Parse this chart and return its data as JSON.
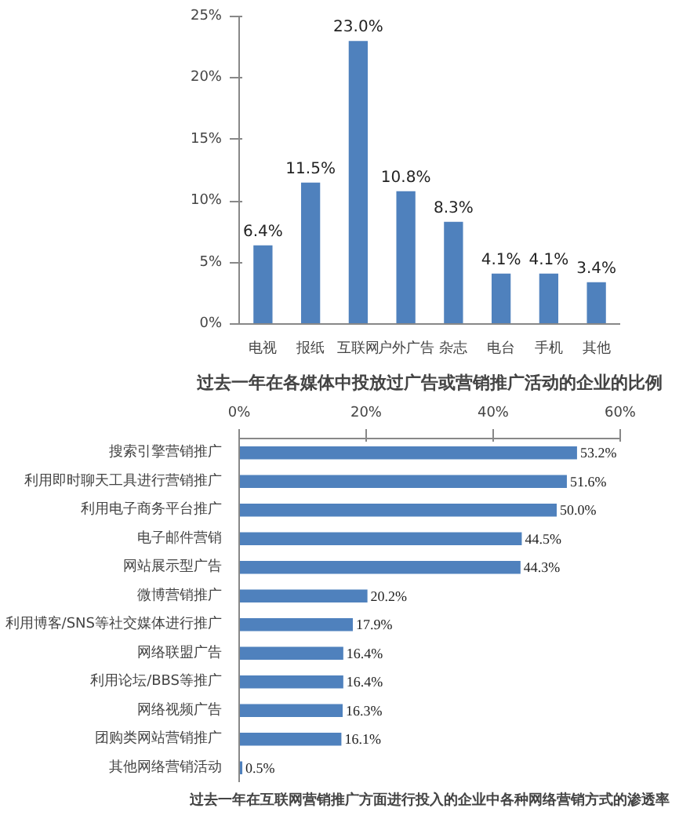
{
  "chart_data": [
    {
      "type": "bar",
      "title": "过去一年在各媒体中投放过广告或营销推广活动的企业的比例",
      "categories": [
        "电视",
        "报纸",
        "互联网",
        "户外广告",
        "杂志",
        "电台",
        "手机",
        "其他"
      ],
      "values": [
        6.4,
        11.5,
        23.0,
        10.8,
        8.3,
        4.1,
        4.1,
        3.4
      ],
      "value_labels": [
        "6.4%",
        "11.5%",
        "23.0%",
        "10.8%",
        "8.3%",
        "4.1%",
        "4.1%",
        "3.4%"
      ],
      "color": "#4f81bd",
      "ylim": [
        0,
        25
      ],
      "yticks": [
        {
          "value": 0,
          "label": "0%"
        },
        {
          "value": 5,
          "label": "5%"
        },
        {
          "value": 10,
          "label": "10%"
        },
        {
          "value": 15,
          "label": "15%"
        },
        {
          "value": 20,
          "label": "20%"
        },
        {
          "value": 25,
          "label": "25%"
        }
      ]
    },
    {
      "type": "bar",
      "orientation": "horizontal",
      "title": "过去一年在互联网营销推广方面进行投入的企业中各种网络营销方式的渗透率",
      "categories": [
        "搜索引擎营销推广",
        "利用即时聊天工具进行营销推广",
        "利用电子商务平台推广",
        "电子邮件营销",
        "网站展示型广告",
        "微博营销推广",
        "利用博客/SNS等社交媒体进行推广",
        "网络联盟广告",
        "利用论坛/BBS等推广",
        "网络视频广告",
        "团购类网站营销推广",
        "其他网络营销活动"
      ],
      "values": [
        53.2,
        51.6,
        50.0,
        44.5,
        44.3,
        20.2,
        17.9,
        16.4,
        16.4,
        16.3,
        16.1,
        0.5
      ],
      "value_labels": [
        "53.2%",
        "51.6%",
        "50.0%",
        "44.5%",
        "44.3%",
        "20.2%",
        "17.9%",
        "16.4%",
        "16.4%",
        "16.3%",
        "16.1%",
        "0.5%"
      ],
      "color": "#4f81bd",
      "xlim": [
        0,
        60
      ],
      "xticks": [
        {
          "value": 0,
          "label": "0%"
        },
        {
          "value": 20,
          "label": "20%"
        },
        {
          "value": 40,
          "label": "40%"
        },
        {
          "value": 60,
          "label": "60%"
        }
      ]
    }
  ]
}
